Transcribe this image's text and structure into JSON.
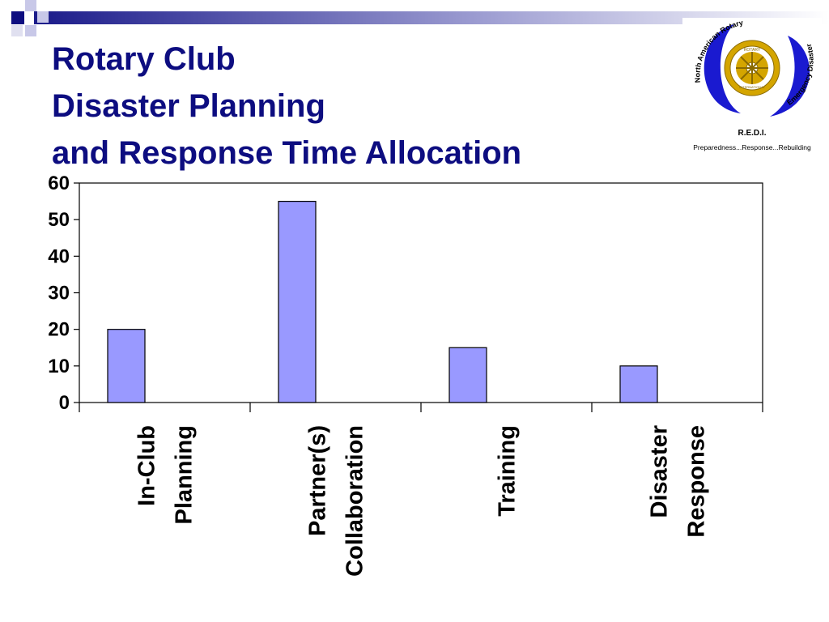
{
  "slide": {
    "title_lines": [
      "Rotary Club",
      "Disaster Planning",
      "and Response Time Allocation"
    ],
    "title_color": "#0d0d80"
  },
  "logo": {
    "ring_text_top": "North American Rotary",
    "ring_text_bottom": "Emergency Disaster Initiative",
    "wheel_text_top": "ROTARY",
    "wheel_text_bottom": "INTERNATIONAL",
    "acronym": "R.E.D.I.",
    "tagline": "Preparedness...Response...Rebuilding",
    "ring_color": "#1a1ad0",
    "wheel_color": "#d4a500"
  },
  "chart_data": {
    "type": "bar",
    "categories": [
      [
        "In-Club",
        "Planning"
      ],
      [
        "Partner(s)",
        "Collaboration"
      ],
      [
        "Training"
      ],
      [
        "Disaster",
        "Response"
      ]
    ],
    "values": [
      20,
      55,
      15,
      10
    ],
    "ylim": [
      0,
      60
    ],
    "yticks": [
      "0",
      "10",
      "20",
      "30",
      "40",
      "50",
      "60"
    ],
    "bar_color": "#9999ff",
    "grid": false,
    "legend": "none"
  }
}
